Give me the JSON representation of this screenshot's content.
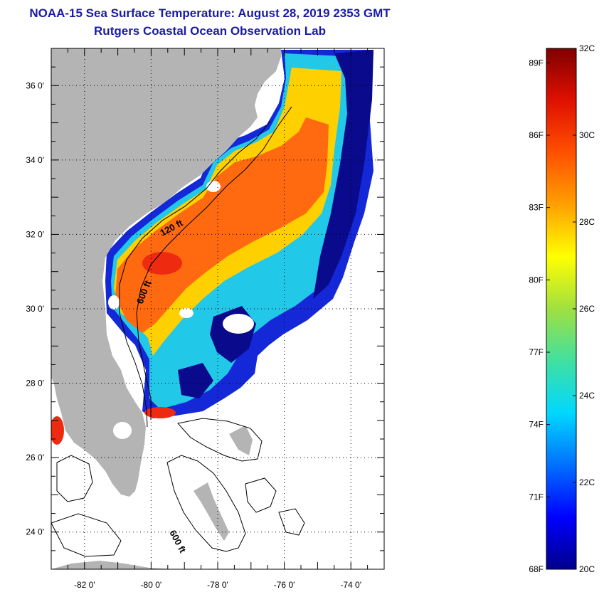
{
  "title": {
    "line1": "NOAA-15 Sea Surface Temperature:  August 28, 2019 2353 GMT",
    "line2": "Rutgers Coastal Ocean Observation Lab"
  },
  "map": {
    "lon_range": [
      -83,
      -73
    ],
    "lat_range": [
      23,
      37
    ],
    "x_ticks": [
      {
        "value": -82,
        "label": "-82 0'"
      },
      {
        "value": -80,
        "label": "-80 0'"
      },
      {
        "value": -78,
        "label": "-78 0'"
      },
      {
        "value": -76,
        "label": "-76 0'"
      },
      {
        "value": -74,
        "label": "-74 0'"
      }
    ],
    "y_ticks": [
      {
        "value": 36,
        "label": "36 0'"
      },
      {
        "value": 34,
        "label": "34 0'"
      },
      {
        "value": 32,
        "label": "32 0'"
      },
      {
        "value": 30,
        "label": "30 0'"
      },
      {
        "value": 28,
        "label": "28 0'"
      },
      {
        "value": 26,
        "label": "26 0'"
      },
      {
        "value": 24,
        "label": "24 0'"
      }
    ],
    "contour_labels": {
      "shelf_120": "120 ft",
      "shelf_600_north": "600 ft",
      "shelf_600_south": "600 ft"
    },
    "colors": {
      "land": "#b4b4b4",
      "ocean_nodata": "#ffffff",
      "sst_warm": "#ff6a10",
      "sst_hot": "#ee2a10",
      "sst_mid": "#ffd000",
      "sst_cool": "#22c8e8",
      "sst_cold": "#1428d8",
      "sst_coldest": "#0a0a8c"
    }
  },
  "colorbar": {
    "min_c": 20,
    "max_c": 32,
    "celsius_labels": [
      "20C",
      "22C",
      "24C",
      "26C",
      "28C",
      "30C",
      "32C"
    ],
    "fahrenheit_labels": [
      "68F",
      "71F",
      "74F",
      "77F",
      "80F",
      "83F",
      "86F",
      "89F"
    ],
    "stops": [
      "#00008c",
      "#0000ff",
      "#0070ff",
      "#00d8ff",
      "#40e0a0",
      "#a0e040",
      "#ffff00",
      "#ffa000",
      "#ff5000",
      "#e01000",
      "#800000"
    ]
  }
}
